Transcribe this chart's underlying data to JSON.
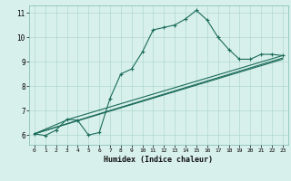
{
  "xlabel": "Humidex (Indice chaleur)",
  "bg_color": "#d8f0ec",
  "grid_color": "#b0d8d0",
  "line_color": "#1a6b5a",
  "xlim": [
    -0.5,
    23.5
  ],
  "ylim": [
    5.6,
    11.3
  ],
  "xticks": [
    0,
    1,
    2,
    3,
    4,
    5,
    6,
    7,
    8,
    9,
    10,
    11,
    12,
    13,
    14,
    15,
    16,
    17,
    18,
    19,
    20,
    21,
    22,
    23
  ],
  "yticks": [
    6,
    7,
    8,
    9,
    10,
    11
  ],
  "line1_x": [
    0,
    1,
    2,
    3,
    4,
    5,
    6,
    7,
    8,
    9,
    10,
    11,
    12,
    13,
    14,
    15,
    16,
    17,
    18,
    19,
    20,
    21,
    22,
    23
  ],
  "line1_y": [
    6.05,
    5.98,
    6.2,
    6.65,
    6.6,
    6.0,
    6.1,
    7.5,
    8.5,
    8.7,
    9.4,
    10.3,
    10.4,
    10.5,
    10.75,
    11.1,
    10.7,
    10.0,
    9.5,
    9.1,
    9.1,
    9.3,
    9.3,
    9.25
  ],
  "line2_x": [
    0,
    3.2,
    23
  ],
  "line2_y": [
    6.05,
    6.65,
    9.25
  ],
  "line3_x": [
    0,
    4.0,
    23
  ],
  "line3_y": [
    6.05,
    6.6,
    9.15
  ],
  "line4_x": [
    0,
    23
  ],
  "line4_y": [
    6.05,
    9.1
  ]
}
